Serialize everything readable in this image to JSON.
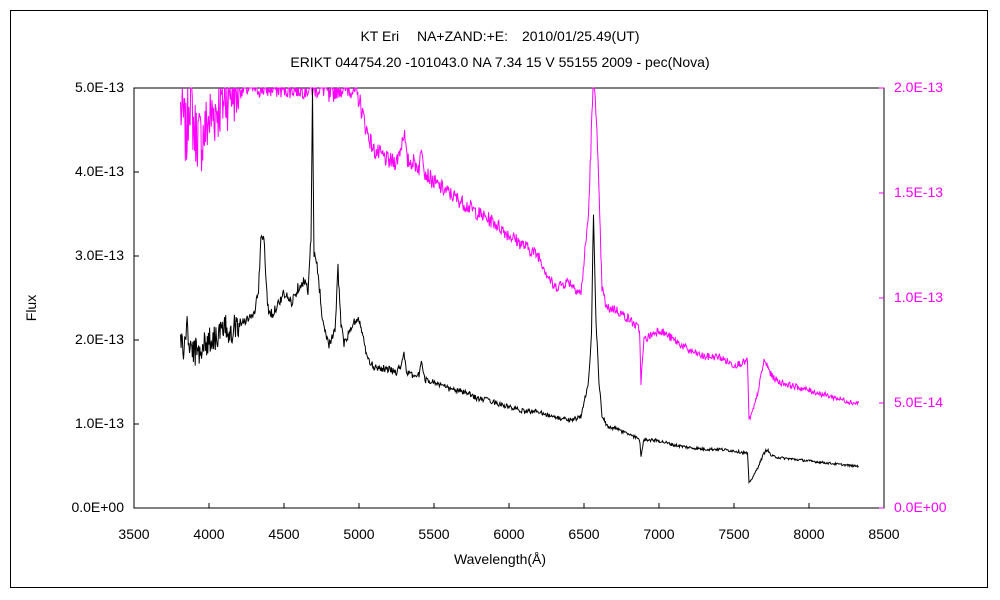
{
  "chart_data": {
    "type": "line",
    "title": "KT Eri　 NA+ZAND:+E:　2010/01/25.49(UT)",
    "subtitle": "ERIKT 044754.20 -101043.0 NA 7.34 15 V 55155 2009 - pec(Nova)",
    "xlabel": "Wavelength(Å)",
    "ylabel": "Flux",
    "xlim": [
      3500,
      8500
    ],
    "ylim": [
      0,
      5e-13
    ],
    "y2lim": [
      0,
      2e-13
    ],
    "x_ticks": [
      "3500",
      "4000",
      "4500",
      "5000",
      "5500",
      "6000",
      "6500",
      "7000",
      "7500",
      "8000",
      "8500"
    ],
    "y_ticks": [
      "0.0E+00",
      "1.0E-13",
      "2.0E-13",
      "3.0E-13",
      "4.0E-13",
      "5.0E-13"
    ],
    "y2_ticks": [
      "0.0E+00",
      "5.0E-14",
      "1.0E-13",
      "1.5E-13",
      "2.0E-13"
    ],
    "grid": false,
    "legend": "none",
    "colors": {
      "primary": "#000000",
      "secondary": "#ff00ff"
    },
    "series": [
      {
        "axis": "left",
        "x": [
          3810,
          3830,
          3850,
          3870,
          3900,
          3950,
          4000,
          4050,
          4100,
          4150,
          4200,
          4250,
          4300,
          4330,
          4350,
          4370,
          4390,
          4420,
          4450,
          4500,
          4550,
          4600,
          4630,
          4660,
          4680,
          4690,
          4700,
          4720,
          4760,
          4800,
          4840,
          4860,
          4880,
          4900,
          4940,
          4980,
          5010,
          5030,
          5060,
          5100,
          5200,
          5250,
          5280,
          5300,
          5320,
          5360,
          5400,
          5420,
          5440,
          5500,
          5600,
          5700,
          5800,
          5875,
          5900,
          6000,
          6100,
          6200,
          6300,
          6400,
          6480,
          6530,
          6550,
          6563,
          6580,
          6600,
          6620,
          6650,
          6700,
          6800,
          6870,
          6880,
          6900,
          7000,
          7100,
          7200,
          7300,
          7400,
          7500,
          7590,
          7600,
          7620,
          7650,
          7700,
          7720,
          7750,
          7800,
          7900,
          8000,
          8100,
          8200,
          8300,
          8330
        ],
        "y": [
          2.05e-13,
          1.85e-13,
          2.15e-13,
          1.95e-13,
          1.85e-13,
          1.9e-13,
          2e-13,
          2.05e-13,
          2.1e-13,
          2.15e-13,
          2.2e-13,
          2.25e-13,
          2.3e-13,
          2.6e-13,
          3.3e-13,
          3.1e-13,
          2.4e-13,
          2.3e-13,
          2.4e-13,
          2.55e-13,
          2.45e-13,
          2.65e-13,
          2.7e-13,
          2.6e-13,
          3.2e-13,
          4.9e-13,
          3e-13,
          2.9e-13,
          2.2e-13,
          1.95e-13,
          2.1e-13,
          2.85e-13,
          2.2e-13,
          1.95e-13,
          2.1e-13,
          2.25e-13,
          2.2e-13,
          2e-13,
          1.75e-13,
          1.68e-13,
          1.65e-13,
          1.62e-13,
          1.7e-13,
          1.85e-13,
          1.6e-13,
          1.58e-13,
          1.58e-13,
          1.75e-13,
          1.52e-13,
          1.5e-13,
          1.42e-13,
          1.38e-13,
          1.3e-13,
          1.28e-13,
          1.26e-13,
          1.2e-13,
          1.15e-13,
          1.15e-13,
          1.08e-13,
          1.05e-13,
          1.08e-13,
          1.5e-13,
          2.1e-13,
          3.5e-13,
          2.2e-13,
          1.5e-13,
          1.1e-13,
          9.8e-14,
          9.5e-14,
          8.8e-14,
          8.2e-14,
          6.2e-14,
          8.2e-14,
          8e-14,
          7.5e-14,
          7.2e-14,
          7e-14,
          7e-14,
          6.8e-14,
          6.5e-14,
          3e-14,
          3.5e-14,
          4.5e-14,
          6.5e-14,
          7e-14,
          6.2e-14,
          6e-14,
          5.8e-14,
          5.6e-14,
          5.4e-14,
          5.2e-14,
          5e-14,
          5e-14
        ]
      },
      {
        "axis": "right",
        "x": [
          3810,
          3830,
          3850,
          3870,
          3900,
          3950,
          4000,
          4050,
          4100,
          4150,
          4180,
          4200,
          4300,
          4400,
          4500,
          4600,
          4700,
          4780,
          4800,
          4850,
          4950,
          5000,
          5050,
          5100,
          5150,
          5200,
          5250,
          5280,
          5300,
          5320,
          5360,
          5400,
          5420,
          5440,
          5500,
          5600,
          5700,
          5800,
          5900,
          6000,
          6100,
          6200,
          6250,
          6300,
          6400,
          6480,
          6530,
          6560,
          6575,
          6590,
          6620,
          6650,
          6700,
          6800,
          6870,
          6880,
          6900,
          7000,
          7100,
          7200,
          7300,
          7400,
          7500,
          7590,
          7600,
          7620,
          7650,
          7700,
          7720,
          7750,
          7800,
          7900,
          8000,
          8100,
          8200,
          8300,
          8330
        ],
        "y": [
          1.9e-13,
          1.85e-13,
          1.75e-13,
          2e-13,
          1.8e-13,
          1.75e-13,
          1.85e-13,
          1.9e-13,
          1.95e-13,
          2e-13,
          2e-13,
          2e-13,
          2e-13,
          2e-13,
          2e-13,
          2e-13,
          2e-13,
          2e-13,
          1.95e-13,
          2e-13,
          2e-13,
          1.95e-13,
          1.8e-13,
          1.7e-13,
          1.68e-13,
          1.65e-13,
          1.65e-13,
          1.72e-13,
          1.8e-13,
          1.65e-13,
          1.65e-13,
          1.62e-13,
          1.72e-13,
          1.6e-13,
          1.55e-13,
          1.5e-13,
          1.45e-13,
          1.4e-13,
          1.36e-13,
          1.3e-13,
          1.25e-13,
          1.2e-13,
          1.12e-13,
          1.05e-13,
          1.08e-13,
          1.02e-13,
          1.4e-13,
          2e-13,
          2e-13,
          1.7e-13,
          1.05e-13,
          9.5e-14,
          9.5e-14,
          9e-14,
          8.5e-14,
          6e-14,
          8e-14,
          8.5e-14,
          8e-14,
          7.5e-14,
          7.2e-14,
          7.2e-14,
          6.8e-14,
          7e-14,
          4.2e-14,
          4.5e-14,
          5.2e-14,
          7e-14,
          6.8e-14,
          6.3e-14,
          6e-14,
          5.8e-14,
          5.6e-14,
          5.4e-14,
          5.2e-14,
          5e-14,
          5e-14
        ]
      }
    ]
  }
}
